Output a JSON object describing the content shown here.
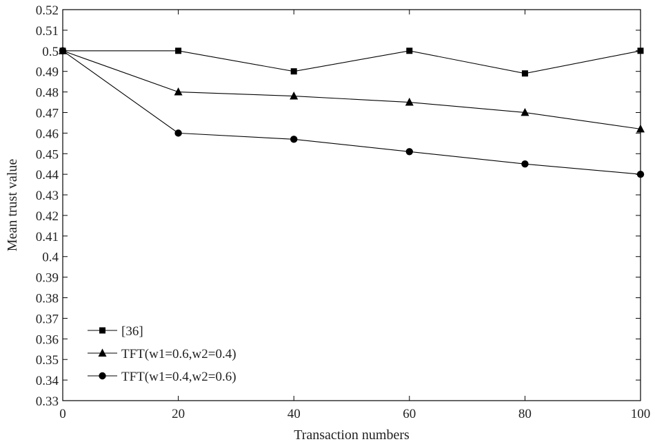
{
  "chart_data": {
    "type": "line",
    "title": "",
    "xlabel": "Transaction numbers",
    "ylabel": "Mean trust value",
    "x": [
      0,
      20,
      40,
      60,
      80,
      100
    ],
    "xlim": [
      0,
      100
    ],
    "ylim": [
      0.33,
      0.52
    ],
    "xticks": [
      "0",
      "20",
      "40",
      "60",
      "80",
      "100"
    ],
    "yticks": [
      "0.33",
      "0.34",
      "0.35",
      "0.36",
      "0.37",
      "0.38",
      "0.39",
      "0.4",
      "0.41",
      "0.42",
      "0.43",
      "0.44",
      "0.45",
      "0.46",
      "0.47",
      "0.48",
      "0.49",
      "0.5",
      "0.51",
      "0.52"
    ],
    "grid": false,
    "legend_position": "bottom-left",
    "series": [
      {
        "name": "[36]",
        "marker": "square",
        "values": [
          0.5,
          0.5,
          0.49,
          0.5,
          0.489,
          0.5
        ]
      },
      {
        "name": "TFT(w1=0.6,w2=0.4)",
        "marker": "triangle",
        "values": [
          0.5,
          0.48,
          0.478,
          0.475,
          0.47,
          0.462
        ]
      },
      {
        "name": "TFT(w1=0.4,w2=0.6)",
        "marker": "circle",
        "values": [
          0.5,
          0.46,
          0.457,
          0.451,
          0.445,
          0.44
        ]
      }
    ],
    "colors": {
      "line": "#000000",
      "axis": "#000000"
    }
  }
}
